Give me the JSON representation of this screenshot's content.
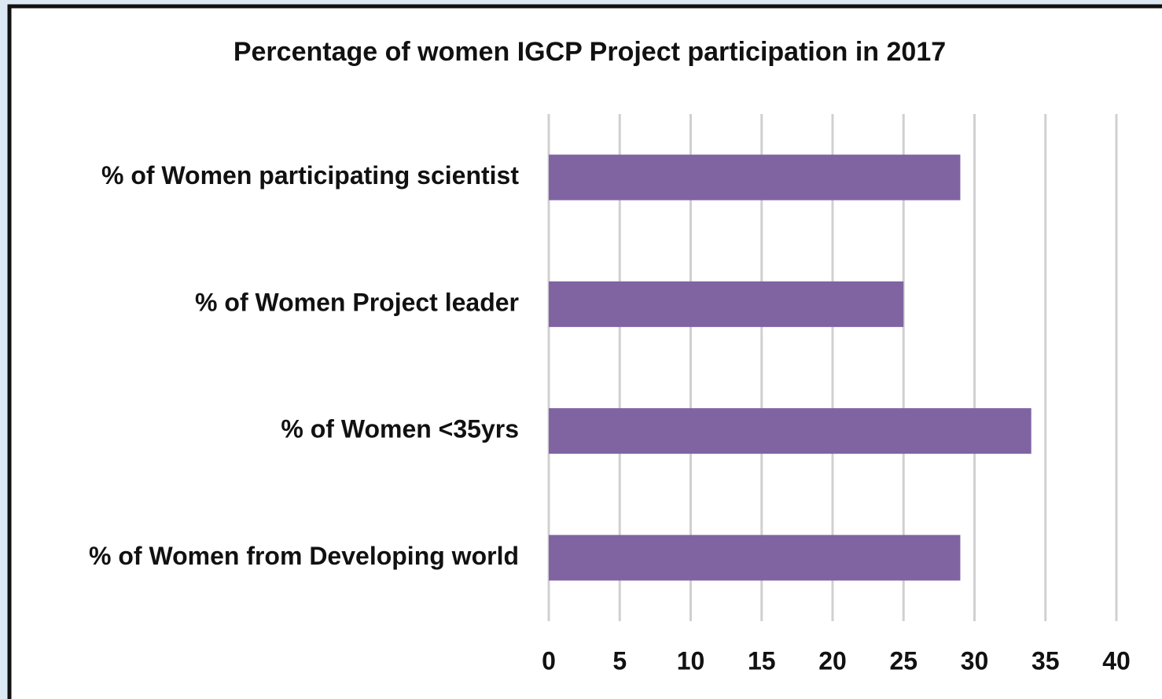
{
  "chart_data": {
    "type": "bar",
    "orientation": "horizontal",
    "title": "Percentage of women IGCP Project participation in 2017",
    "categories": [
      "% of Women participating scientist",
      "% of Women Project leader",
      "% of Women <35yrs",
      "% of Women from Developing world"
    ],
    "values": [
      29,
      25,
      34,
      29
    ],
    "color": "#8064a2",
    "xlim": [
      0,
      40
    ],
    "xticks": [
      0,
      5,
      10,
      15,
      20,
      25,
      30,
      35,
      40
    ],
    "grid": true
  }
}
